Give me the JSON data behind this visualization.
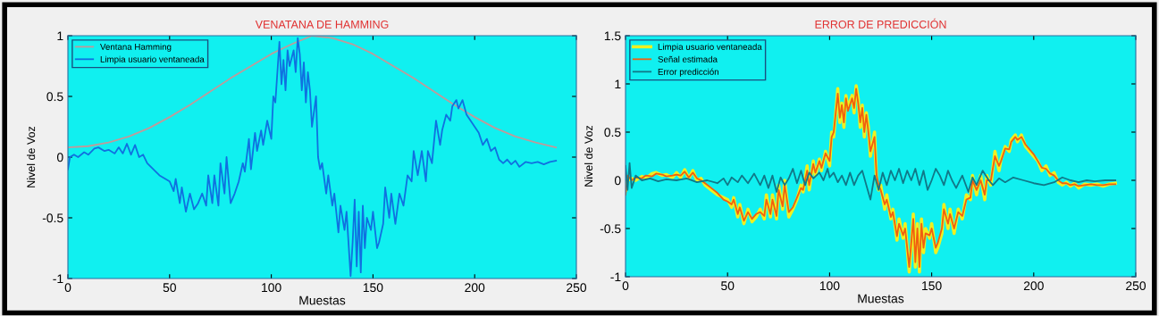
{
  "chart_data": [
    {
      "type": "line",
      "title": "VENATANA DE HAMMING",
      "xlabel": "Muestas",
      "ylabel": "Nivel de Voz",
      "xlim": [
        0,
        250
      ],
      "xticks": [
        0,
        50,
        100,
        150,
        200,
        250
      ],
      "ylim": [
        -1,
        1
      ],
      "yticks": [
        -1,
        -0.5,
        0,
        0.5,
        1
      ],
      "legend": "top left",
      "grid": false,
      "series": [
        {
          "name": "Ventana Hamming",
          "color": "#c09a9a",
          "x": [
            0,
            10,
            20,
            30,
            40,
            50,
            60,
            70,
            80,
            90,
            100,
            110,
            120,
            130,
            140,
            150,
            160,
            170,
            180,
            190,
            200,
            210,
            220,
            230,
            240
          ],
          "values": [
            0.08,
            0.09,
            0.12,
            0.17,
            0.24,
            0.33,
            0.43,
            0.54,
            0.65,
            0.75,
            0.85,
            0.93,
            1,
            0.98,
            0.93,
            0.85,
            0.75,
            0.65,
            0.54,
            0.43,
            0.33,
            0.24,
            0.17,
            0.12,
            0.08
          ]
        },
        {
          "name": "Limpia usuario ventaneada",
          "color": "#1070e0",
          "x": [
            0,
            1,
            3,
            5,
            8,
            10,
            13,
            15,
            18,
            20,
            23,
            25,
            27,
            29,
            31,
            33,
            35,
            37,
            39,
            42,
            45,
            48,
            50,
            52,
            53,
            55,
            56,
            58,
            60,
            62,
            64,
            66,
            68,
            69,
            71,
            72,
            74,
            75,
            77,
            78,
            80,
            82,
            84,
            86,
            87,
            89,
            90,
            92,
            93,
            95,
            96,
            98,
            100,
            101,
            102,
            104,
            105,
            106,
            107,
            108,
            109,
            111,
            112,
            113,
            114,
            115,
            116,
            117,
            118,
            119,
            120,
            122,
            123,
            124,
            125,
            127,
            128,
            130,
            131,
            133,
            134,
            136,
            137,
            139,
            140,
            141,
            142,
            143,
            144,
            145,
            146,
            147,
            149,
            150,
            152,
            153,
            155,
            156,
            158,
            159,
            161,
            163,
            165,
            167,
            169,
            170,
            172,
            174,
            176,
            177,
            179,
            181,
            183,
            184,
            186,
            188,
            189,
            191,
            192,
            194,
            196,
            198,
            200,
            202,
            204,
            206,
            208,
            210,
            212,
            214,
            216,
            218,
            220,
            222,
            225,
            228,
            231,
            234,
            237,
            240
          ],
          "values": [
            -0.1,
            0,
            0.02,
            0,
            0.04,
            0.02,
            0.07,
            0.08,
            0.05,
            0.06,
            0.03,
            0.08,
            0.03,
            0.11,
            0.02,
            0.1,
            0,
            0.02,
            -0.05,
            -0.1,
            -0.15,
            -0.18,
            -0.2,
            -0.28,
            -0.18,
            -0.38,
            -0.25,
            -0.45,
            -0.3,
            -0.43,
            -0.38,
            -0.3,
            -0.4,
            -0.15,
            -0.38,
            -0.15,
            -0.4,
            -0.05,
            -0.3,
            0,
            -0.38,
            -0.3,
            -0.2,
            -0.05,
            -0.12,
            0.15,
            -0.1,
            0.2,
            0.05,
            0.22,
            0.1,
            0.3,
            0.15,
            0.5,
            0.45,
            0.95,
            0.6,
            0.8,
            0.55,
            0.88,
            0.75,
            0.88,
            0.7,
            0.98,
            0.85,
            0.55,
            0.78,
            0.45,
            0.7,
            0.55,
            0.25,
            0.5,
            0,
            -0.1,
            -0.05,
            -0.3,
            -0.15,
            -0.4,
            -0.3,
            -0.62,
            -0.4,
            -0.6,
            -0.45,
            -0.98,
            -0.7,
            -0.35,
            -0.9,
            -0.45,
            -0.95,
            -0.4,
            -0.75,
            -0.5,
            -0.6,
            -0.45,
            -0.75,
            -0.7,
            -0.55,
            -0.25,
            -0.5,
            -0.3,
            -0.55,
            -0.3,
            -0.4,
            -0.15,
            -0.2,
            0.05,
            -0.15,
            0.05,
            -0.2,
            0.05,
            -0.05,
            0.3,
            0.1,
            0.22,
            0.35,
            0.3,
            0.42,
            0.47,
            0.4,
            0.47,
            0.35,
            0.3,
            0.25,
            0.2,
            0.1,
            0.15,
            0.05,
            0.08,
            -0.02,
            -0.05,
            -0.02,
            -0.06,
            -0.03,
            -0.08,
            -0.04,
            -0.05,
            -0.04,
            -0.06,
            -0.04,
            -0.03
          ]
        }
      ]
    },
    {
      "type": "line",
      "title": "ERROR DE PREDICCIÓN",
      "xlabel": "Muestas",
      "ylabel": "Nivel de Voz",
      "xlim": [
        0,
        250
      ],
      "xticks": [
        0,
        50,
        100,
        150,
        200,
        250
      ],
      "ylim": [
        -1,
        1.5
      ],
      "yticks": [
        -1,
        -0.5,
        0,
        0.5,
        1,
        1.5
      ],
      "legend": "top left",
      "grid": false,
      "series": [
        {
          "name": "Limpia usuario ventaneada",
          "color": "#f0f020",
          "x": [
            0,
            1,
            3,
            5,
            8,
            10,
            13,
            15,
            18,
            20,
            23,
            25,
            27,
            29,
            31,
            33,
            35,
            37,
            39,
            42,
            45,
            48,
            50,
            52,
            53,
            55,
            56,
            58,
            60,
            62,
            64,
            66,
            68,
            69,
            71,
            72,
            74,
            75,
            77,
            78,
            80,
            82,
            84,
            86,
            87,
            89,
            90,
            92,
            93,
            95,
            96,
            98,
            100,
            101,
            102,
            104,
            105,
            106,
            107,
            108,
            109,
            111,
            112,
            113,
            114,
            115,
            116,
            117,
            118,
            119,
            120,
            122,
            123,
            124,
            125,
            127,
            128,
            130,
            131,
            133,
            134,
            136,
            137,
            139,
            140,
            141,
            142,
            143,
            144,
            145,
            146,
            147,
            149,
            150,
            152,
            153,
            155,
            156,
            158,
            159,
            161,
            163,
            165,
            167,
            169,
            170,
            172,
            174,
            176,
            177,
            179,
            181,
            183,
            184,
            186,
            188,
            189,
            191,
            192,
            194,
            196,
            198,
            200,
            202,
            204,
            206,
            208,
            210,
            212,
            214,
            216,
            218,
            220,
            222,
            225,
            228,
            231,
            234,
            237,
            240
          ],
          "values": [
            -0.1,
            0,
            0.02,
            0,
            0.04,
            0.02,
            0.07,
            0.08,
            0.05,
            0.06,
            0.03,
            0.08,
            0.03,
            0.11,
            0.02,
            0.1,
            0,
            0.02,
            -0.05,
            -0.1,
            -0.15,
            -0.18,
            -0.2,
            -0.28,
            -0.18,
            -0.38,
            -0.25,
            -0.45,
            -0.3,
            -0.43,
            -0.38,
            -0.3,
            -0.4,
            -0.15,
            -0.38,
            -0.15,
            -0.4,
            -0.05,
            -0.3,
            0,
            -0.38,
            -0.3,
            -0.2,
            -0.05,
            -0.12,
            0.15,
            -0.1,
            0.2,
            0.05,
            0.22,
            0.1,
            0.3,
            0.15,
            0.5,
            0.45,
            0.95,
            0.6,
            0.8,
            0.55,
            0.88,
            0.75,
            0.88,
            0.7,
            0.98,
            0.85,
            0.55,
            0.78,
            0.45,
            0.7,
            0.55,
            0.25,
            0.5,
            0,
            -0.1,
            -0.05,
            -0.3,
            -0.15,
            -0.4,
            -0.3,
            -0.62,
            -0.4,
            -0.6,
            -0.45,
            -0.95,
            -0.7,
            -0.35,
            -0.9,
            -0.45,
            -0.95,
            -0.4,
            -0.75,
            -0.5,
            -0.6,
            -0.45,
            -0.75,
            -0.7,
            -0.55,
            -0.25,
            -0.5,
            -0.3,
            -0.55,
            -0.3,
            -0.4,
            -0.15,
            -0.2,
            0.05,
            -0.15,
            0.05,
            -0.2,
            0.05,
            -0.05,
            0.3,
            0.1,
            0.22,
            0.35,
            0.3,
            0.42,
            0.47,
            0.4,
            0.47,
            0.35,
            0.3,
            0.25,
            0.2,
            0.1,
            0.15,
            0.05,
            0.08,
            -0.02,
            -0.05,
            -0.02,
            -0.06,
            -0.03,
            -0.08,
            -0.04,
            -0.05,
            -0.04,
            -0.06,
            -0.04,
            -0.03
          ]
        },
        {
          "name": "Señal estimada",
          "color": "#f06010",
          "x": [
            0,
            1,
            3,
            5,
            8,
            10,
            13,
            15,
            18,
            20,
            23,
            25,
            27,
            29,
            31,
            33,
            35,
            37,
            39,
            42,
            45,
            48,
            50,
            52,
            53,
            55,
            56,
            58,
            60,
            62,
            64,
            66,
            68,
            69,
            71,
            72,
            74,
            75,
            77,
            78,
            80,
            82,
            84,
            86,
            87,
            89,
            90,
            92,
            93,
            95,
            96,
            98,
            100,
            101,
            102,
            104,
            105,
            106,
            107,
            108,
            109,
            111,
            112,
            113,
            114,
            115,
            116,
            117,
            118,
            119,
            120,
            122,
            123,
            124,
            125,
            127,
            128,
            130,
            131,
            133,
            134,
            136,
            137,
            139,
            140,
            141,
            142,
            143,
            144,
            145,
            146,
            147,
            149,
            150,
            152,
            153,
            155,
            156,
            158,
            159,
            161,
            163,
            165,
            167,
            169,
            170,
            172,
            174,
            176,
            177,
            179,
            181,
            183,
            184,
            186,
            188,
            189,
            191,
            192,
            194,
            196,
            198,
            200,
            202,
            204,
            206,
            208,
            210,
            212,
            214,
            216,
            218,
            220,
            222,
            225,
            228,
            231,
            234,
            237,
            240
          ],
          "values": [
            -0.15,
            0.05,
            0,
            0.03,
            0.02,
            0.05,
            0.04,
            0.07,
            0.06,
            0.04,
            0.05,
            0.06,
            0.05,
            0.09,
            0.03,
            0.08,
            0.02,
            0,
            -0.03,
            -0.08,
            -0.13,
            -0.2,
            -0.22,
            -0.25,
            -0.2,
            -0.35,
            -0.28,
            -0.42,
            -0.33,
            -0.4,
            -0.35,
            -0.33,
            -0.37,
            -0.2,
            -0.35,
            -0.2,
            -0.37,
            -0.1,
            -0.27,
            -0.05,
            -0.33,
            -0.28,
            -0.18,
            -0.08,
            -0.1,
            0.1,
            -0.05,
            0.17,
            0.08,
            0.2,
            0.13,
            0.28,
            0.2,
            0.45,
            0.5,
            0.9,
            0.65,
            0.78,
            0.6,
            0.85,
            0.72,
            0.85,
            0.75,
            0.95,
            0.8,
            0.6,
            0.75,
            0.5,
            0.68,
            0.5,
            0.3,
            0.45,
            0.05,
            -0.05,
            -0.1,
            -0.25,
            -0.2,
            -0.38,
            -0.33,
            -0.58,
            -0.45,
            -0.57,
            -0.5,
            -0.9,
            -0.65,
            -0.4,
            -0.85,
            -0.5,
            -0.9,
            -0.45,
            -0.7,
            -0.55,
            -0.57,
            -0.5,
            -0.7,
            -0.65,
            -0.5,
            -0.3,
            -0.45,
            -0.35,
            -0.5,
            -0.33,
            -0.37,
            -0.2,
            -0.18,
            0,
            -0.1,
            0,
            -0.15,
            0,
            0,
            0.25,
            0.15,
            0.2,
            0.33,
            0.32,
            0.4,
            0.45,
            0.42,
            0.45,
            0.37,
            0.32,
            0.27,
            0.2,
            0.13,
            0.12,
            0.07,
            0.05,
            0,
            -0.03,
            -0.03,
            -0.05,
            -0.04,
            -0.06,
            -0.05,
            -0.04,
            -0.05,
            -0.05,
            -0.04,
            -0.04
          ]
        },
        {
          "name": "Error predicción",
          "color": "#107888",
          "x": [
            0,
            1,
            2,
            3,
            5,
            8,
            12,
            16,
            20,
            25,
            30,
            35,
            40,
            45,
            48,
            50,
            52,
            55,
            57,
            60,
            63,
            66,
            68,
            70,
            72,
            74,
            76,
            78,
            80,
            82,
            84,
            86,
            88,
            90,
            92,
            95,
            97,
            99,
            100,
            102,
            104,
            106,
            108,
            110,
            112,
            114,
            116,
            118,
            120,
            122,
            124,
            126,
            128,
            130,
            132,
            134,
            136,
            138,
            140,
            142,
            144,
            146,
            148,
            150,
            152,
            154,
            156,
            158,
            160,
            162,
            165,
            168,
            170,
            172,
            175,
            178,
            180,
            183,
            186,
            190,
            195,
            200,
            205,
            210,
            214,
            218,
            222,
            226,
            230,
            235,
            240
          ],
          "values": [
            0.15,
            -0.1,
            0.18,
            -0.08,
            0.05,
            0,
            0.02,
            -0.01,
            0.01,
            0,
            0.02,
            -0.02,
            0,
            -0.03,
            0.02,
            -0.05,
            0.03,
            -0.02,
            0.05,
            -0.03,
            0.07,
            -0.05,
            0.05,
            -0.08,
            0.05,
            -0.12,
            0.03,
            -0.05,
            0.02,
            0.12,
            -0.03,
            0.1,
            -0.05,
            0.08,
            0.02,
            0.08,
            0,
            0.12,
            0.03,
            0.08,
            -0.02,
            0.05,
            -0.05,
            0.08,
            -0.05,
            0.05,
            0.1,
            -0.05,
            -0.2,
            0.05,
            -0.1,
            0.08,
            -0.05,
            0.1,
            0,
            0.12,
            -0.03,
            0.1,
            0,
            0.12,
            -0.05,
            0.1,
            -0.1,
            0,
            0.12,
            0.05,
            -0.05,
            0.1,
            0,
            -0.08,
            0.05,
            -0.12,
            0.03,
            -0.05,
            0.1,
            0,
            -0.05,
            0.02,
            -0.02,
            0.03,
            0,
            -0.03,
            -0.05,
            -0.02,
            0.03,
            0,
            -0.02,
            0,
            -0.01,
            0,
            0
          ]
        }
      ]
    }
  ]
}
